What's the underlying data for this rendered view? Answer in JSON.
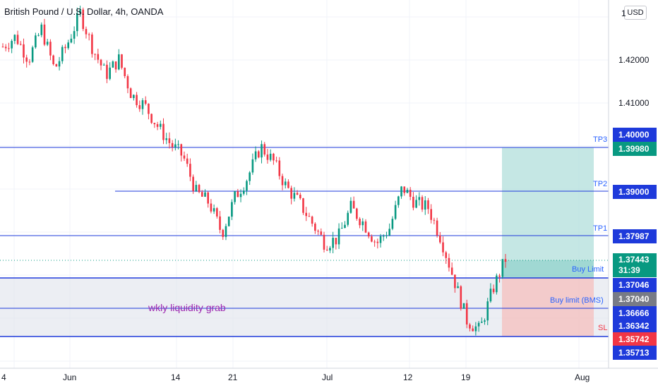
{
  "header": {
    "title": "British Pound / U.S. Dollar, 4h, OANDA",
    "currency_button": "USD",
    "top_partial_price": "1"
  },
  "price_axis": {
    "ticks": [
      "1.42000",
      "1.41000"
    ]
  },
  "time_axis": {
    "ticks": [
      "4",
      "Jun",
      "14",
      "21",
      "Jul",
      "12",
      "19",
      "Aug"
    ]
  },
  "levels": [
    {
      "id": "level-1-40000",
      "price": 1.4,
      "badge": "1.40000",
      "color": "#1e3adb"
    },
    {
      "id": "tp3",
      "price": 1.3998,
      "badge": "1.39980",
      "label": "TP3",
      "color": "#089981"
    },
    {
      "id": "tp2",
      "price": 1.39,
      "badge": "1.39000",
      "label": "TP2",
      "color": "#1e3adb"
    },
    {
      "id": "tp1",
      "price": 1.37987,
      "badge": "1.37987",
      "label": "TP1",
      "color": "#1e3adb"
    },
    {
      "id": "current-price",
      "price": 1.37443,
      "badge": "1.37443",
      "badge_sub": "31:39",
      "color": "#089981"
    },
    {
      "id": "buy-limit",
      "price": 1.37046,
      "badge": "1.37046",
      "label": "Buy Limit",
      "color": "#1e3adb"
    },
    {
      "id": "entry",
      "price": 1.3704,
      "badge": "1.37040",
      "color": "#787b86"
    },
    {
      "id": "buy-limit-bms",
      "price": 1.36666,
      "badge": "1.36666",
      "label": "Buy limit (BMS)",
      "color": "#1e3adb"
    },
    {
      "id": "level-1-36342",
      "price": 1.36342,
      "badge": "1.36342",
      "color": "#1e3adb"
    },
    {
      "id": "sl",
      "price": 1.35742,
      "badge": "1.35742",
      "label": "SL",
      "color": "#f23645"
    },
    {
      "id": "level-1-35713",
      "price": 1.35713,
      "badge": "1.35713",
      "color": "#1e3adb"
    }
  ],
  "annotation": {
    "text": "wkly liquidity grab"
  },
  "colors": {
    "up": "#089981",
    "down": "#f23645",
    "line": "#2962ff",
    "profit_zone": "#b2dfdb",
    "loss_zone": "#f5c2c0",
    "range_zone": "#e0e3eb"
  },
  "chart_data": {
    "type": "candlestick",
    "symbol": "British Pound / U.S. Dollar",
    "interval": "4h",
    "source": "OANDA",
    "ylim": [
      1.356,
      1.428
    ],
    "close_path": [
      1.4175,
      1.4195,
      1.415,
      1.421,
      1.413,
      1.418,
      1.424,
      1.417,
      1.412,
      1.415,
      1.408,
      1.406,
      1.402,
      1.3985,
      1.396,
      1.389,
      1.387,
      1.381,
      1.388,
      1.392,
      1.398,
      1.395,
      1.39,
      1.387,
      1.383,
      1.379,
      1.38,
      1.386,
      1.383,
      1.379,
      1.382,
      1.39,
      1.387,
      1.386,
      1.38,
      1.372,
      1.364,
      1.362,
      1.37,
      1.376
    ]
  }
}
